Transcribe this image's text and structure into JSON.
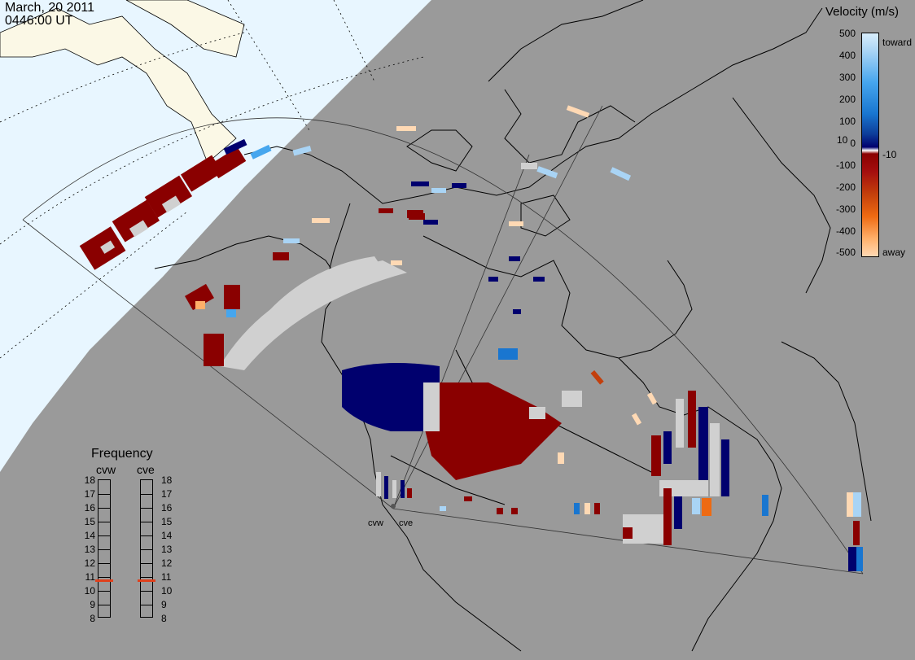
{
  "header": {
    "date": "March, 20 2011",
    "time": "0446:00 UT"
  },
  "velocity_scale": {
    "title": "Velocity (m/s)",
    "ticks": [
      "500",
      "400",
      "300",
      "200",
      "100",
      "10",
      "0",
      "-10",
      "-100",
      "-200",
      "-300",
      "-400",
      "-500"
    ],
    "toward_label": "toward",
    "away_label": "away"
  },
  "frequency": {
    "title": "Frequency",
    "radars": [
      {
        "name": "cvw",
        "value_mhz": 10.7
      },
      {
        "name": "cve",
        "value_mhz": 10.7
      }
    ],
    "ticks": [
      "18",
      "17",
      "16",
      "15",
      "14",
      "13",
      "12",
      "11",
      "10",
      "9",
      "8"
    ]
  },
  "radar_sites": [
    "cvw",
    "cve"
  ],
  "colors": {
    "land": "#9a9a9a",
    "ocean_dark": "#e8f6ff",
    "land_dark": "#fbf8e6",
    "ground_scatter": "#d0d0d0",
    "away_strong": "#8a0000",
    "toward_strong": "#00006e",
    "freq_marker": "#e0401c"
  }
}
